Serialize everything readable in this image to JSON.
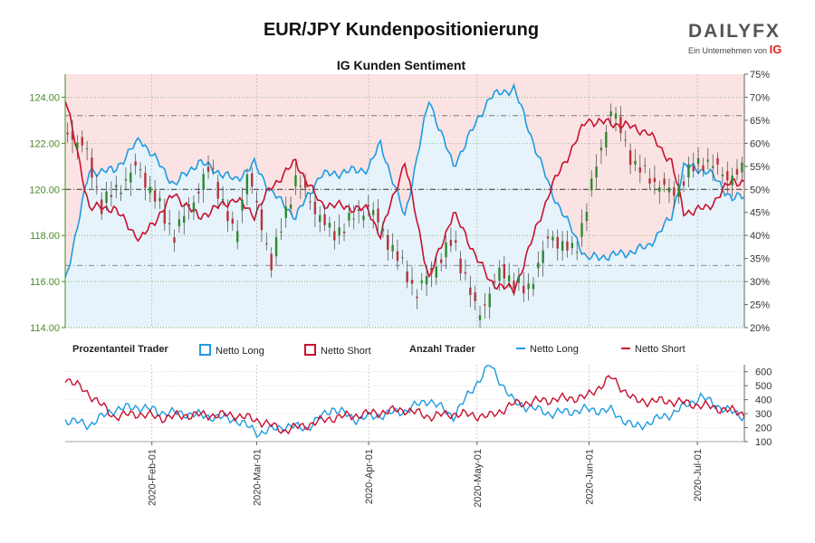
{
  "header": {
    "title": "EUR/JPY Kundenpositionierung",
    "subtitle": "IG Kunden Sentiment"
  },
  "logo": {
    "brand": "DAILYFX",
    "tagline": "Ein Unternehmen von",
    "tagline_mark": "IG"
  },
  "legend": {
    "group1_title": "Prozentanteil Trader",
    "long_label": "Netto Long",
    "short_label": "Netto Short",
    "group2_title": "Anzahl Trader",
    "long_label2": "Netto Long",
    "short_label2": "Netto Short"
  },
  "colors": {
    "long": "#1e9be0",
    "short": "#c8102e",
    "long_fill": "#e6f3fb",
    "short_fill": "#fbe3e3",
    "candle_up": "#2d8a2d",
    "candle_down": "#b8333a",
    "price_axis": "#4a8a2a"
  },
  "chart_data": [
    {
      "type": "line",
      "name": "price",
      "ylim": [
        114,
        125
      ],
      "yticks": [
        114,
        116,
        118,
        120,
        122,
        124
      ],
      "ytick_labels": [
        "114.00",
        "116.00",
        "118.00",
        "120.00",
        "122.00",
        "124.00"
      ],
      "pct_ylim": [
        20,
        75
      ],
      "pct_ticks": [
        "20%",
        "25%",
        "30%",
        "35%",
        "40%",
        "45%",
        "50%",
        "55%",
        "60%",
        "65%",
        "70%",
        "75%"
      ],
      "price_keypoints": [
        [
          0,
          122.6
        ],
        [
          8,
          121.8
        ],
        [
          15,
          119.3
        ],
        [
          30,
          121.0
        ],
        [
          45,
          118.0
        ],
        [
          60,
          121.0
        ],
        [
          70,
          117.8
        ],
        [
          75,
          120.8
        ],
        [
          85,
          116.8
        ],
        [
          95,
          120.5
        ],
        [
          110,
          118.0
        ],
        [
          125,
          119.3
        ],
        [
          145,
          115.5
        ],
        [
          160,
          117.8
        ],
        [
          170,
          114.5
        ],
        [
          180,
          116.5
        ],
        [
          190,
          115.5
        ],
        [
          200,
          118.0
        ],
        [
          210,
          117.2
        ],
        [
          225,
          123.5
        ],
        [
          235,
          121.0
        ],
        [
          250,
          119.8
        ],
        [
          262,
          121.3
        ],
        [
          275,
          120.5
        ],
        [
          280,
          120.9
        ]
      ],
      "long_pct_keypoints": [
        [
          0,
          30
        ],
        [
          10,
          54
        ],
        [
          20,
          54
        ],
        [
          31,
          61
        ],
        [
          45,
          51
        ],
        [
          55,
          56
        ],
        [
          70,
          52
        ],
        [
          78,
          55.5
        ],
        [
          85,
          49.5
        ],
        [
          95,
          44
        ],
        [
          105,
          53
        ],
        [
          125,
          54.5
        ],
        [
          130,
          60
        ],
        [
          140,
          44
        ],
        [
          150,
          69.5
        ],
        [
          160,
          55
        ],
        [
          175,
          70
        ],
        [
          185,
          72
        ],
        [
          200,
          50
        ],
        [
          215,
          35
        ],
        [
          230,
          36
        ],
        [
          240,
          37.5
        ],
        [
          250,
          44
        ],
        [
          255,
          55
        ],
        [
          265,
          54
        ],
        [
          275,
          48
        ],
        [
          280,
          48.5
        ]
      ],
      "reference_lines": {
        "mid_pct": 50,
        "upper_pct": 66,
        "lower_pct": 33.5
      }
    },
    {
      "type": "line",
      "name": "trader-count",
      "ylim": [
        100,
        650
      ],
      "yticks": [
        100,
        200,
        300,
        400,
        500,
        600
      ],
      "ytick_labels": [
        "100",
        "200",
        "300",
        "400",
        "500",
        "600"
      ],
      "long_count_keypoints": [
        [
          0,
          255
        ],
        [
          10,
          220
        ],
        [
          20,
          330
        ],
        [
          30,
          350
        ],
        [
          40,
          310
        ],
        [
          50,
          300
        ],
        [
          70,
          260
        ],
        [
          80,
          160
        ],
        [
          90,
          210
        ],
        [
          100,
          200
        ],
        [
          110,
          340
        ],
        [
          120,
          260
        ],
        [
          140,
          320
        ],
        [
          150,
          400
        ],
        [
          160,
          280
        ],
        [
          175,
          650
        ],
        [
          185,
          380
        ],
        [
          200,
          300
        ],
        [
          215,
          330
        ],
        [
          225,
          320
        ],
        [
          235,
          200
        ],
        [
          250,
          300
        ],
        [
          262,
          420
        ],
        [
          272,
          330
        ],
        [
          280,
          280
        ]
      ],
      "short_count_keypoints": [
        [
          0,
          560
        ],
        [
          10,
          440
        ],
        [
          20,
          280
        ],
        [
          30,
          300
        ],
        [
          40,
          270
        ],
        [
          50,
          290
        ],
        [
          70,
          290
        ],
        [
          80,
          250
        ],
        [
          90,
          180
        ],
        [
          100,
          220
        ],
        [
          110,
          270
        ],
        [
          120,
          290
        ],
        [
          140,
          330
        ],
        [
          150,
          280
        ],
        [
          160,
          300
        ],
        [
          175,
          280
        ],
        [
          185,
          370
        ],
        [
          200,
          400
        ],
        [
          215,
          420
        ],
        [
          225,
          560
        ],
        [
          235,
          390
        ],
        [
          250,
          390
        ],
        [
          262,
          360
        ],
        [
          272,
          330
        ],
        [
          280,
          300
        ]
      ]
    }
  ],
  "x_axis": {
    "tick_labels": [
      "2020-Feb-01",
      "2020-Mar-01",
      "2020-Apr-01",
      "2020-May-01",
      "2020-Jun-01",
      "2020-Jul-01"
    ],
    "start_date": "2020-Jan-08",
    "end_date": "2020-Jul-14",
    "tick_offsets_days": [
      24,
      53,
      84,
      114,
      145,
      175
    ]
  }
}
